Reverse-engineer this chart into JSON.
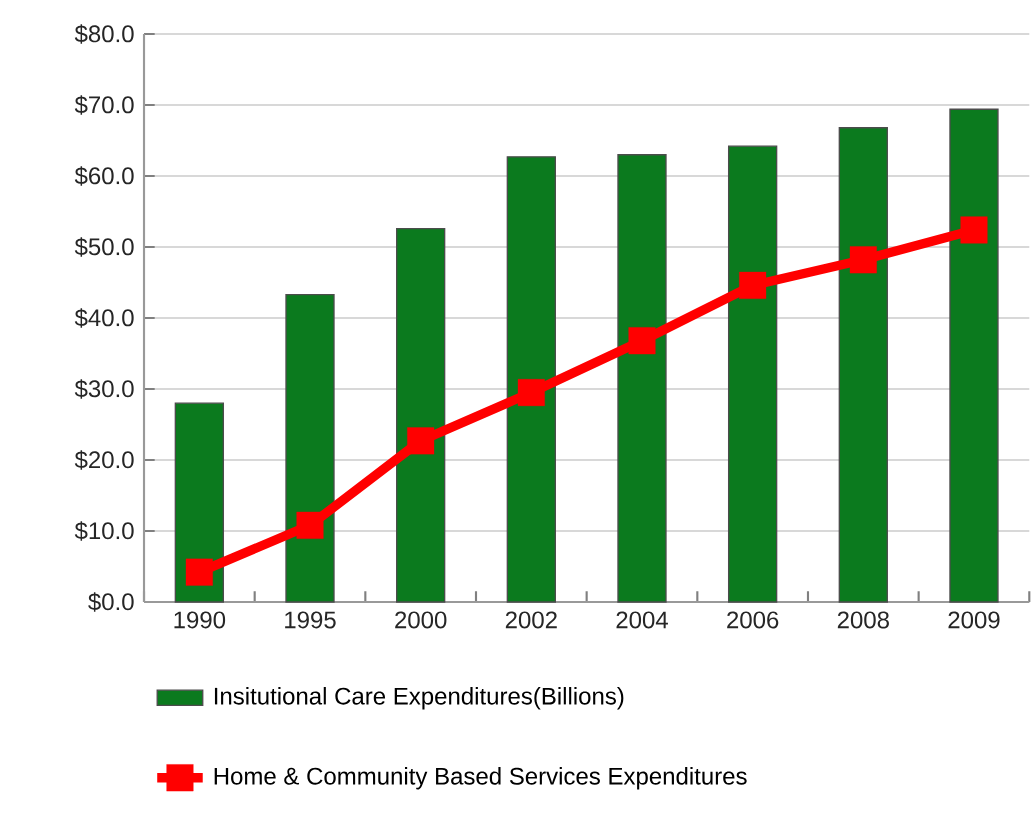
{
  "chart_data": {
    "type": "bar",
    "categories": [
      "1990",
      "1995",
      "2000",
      "2002",
      "2004",
      "2006",
      "2008",
      "2009"
    ],
    "series": [
      {
        "name": "Insitutional Care Expenditures(Billions)",
        "color": "#0b7a1e",
        "values": [
          28.0,
          43.3,
          52.6,
          62.7,
          63.0,
          64.2,
          66.8,
          69.4
        ]
      },
      {
        "name": "Home & Community Based Services Expenditures",
        "type": "line",
        "color": "#ff0000",
        "values": [
          4.2,
          10.8,
          22.7,
          29.5,
          36.8,
          44.6,
          48.2,
          52.4
        ]
      }
    ],
    "ylim": [
      0,
      80
    ],
    "yticks": [
      {
        "value": 0,
        "label": "$0.0"
      },
      {
        "value": 10,
        "label": "$10.0"
      },
      {
        "value": 20,
        "label": "$20.0"
      },
      {
        "value": 30,
        "label": "$30.0"
      },
      {
        "value": 40,
        "label": "$40.0"
      },
      {
        "value": 50,
        "label": "$50.0"
      },
      {
        "value": 60,
        "label": "$60.0"
      },
      {
        "value": 70,
        "label": "$70.0"
      },
      {
        "value": 80,
        "label": "$80.0"
      }
    ],
    "grid": "y",
    "legend": "bottom",
    "marker": "square"
  }
}
